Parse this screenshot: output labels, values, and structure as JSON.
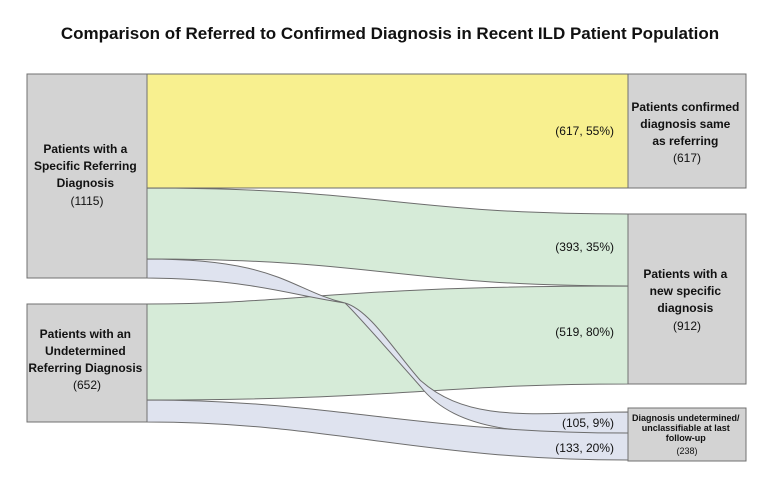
{
  "title": "Comparison of Referred to Confirmed Diagnosis in Recent ILD Patient Population",
  "colors": {
    "node_fill": "#d3d3d3",
    "node_stroke": "#707070",
    "flow_same": "#f8f08f",
    "flow_new": "#d6ebd8",
    "flow_undetermined": "#dfe3ef",
    "flow_stroke": "#6d6d6d"
  },
  "nodes": {
    "specific_referring": {
      "lines": [
        "Patients with a",
        "Specific Referring",
        "Diagnosis"
      ],
      "count": "(1115)"
    },
    "undetermined_referring": {
      "lines": [
        "Patients with an",
        "Undetermined",
        "Referring Diagnosis"
      ],
      "count": "(652)"
    },
    "confirmed_same": {
      "lines": [
        "Patients confirmed",
        "diagnosis same",
        "as referring"
      ],
      "count": "(617)"
    },
    "new_specific": {
      "lines": [
        "Patients with a",
        "new specific",
        "diagnosis"
      ],
      "count": "(912)"
    },
    "undetermined_final": {
      "lines": [
        "Diagnosis undetermined/",
        "unclassifiable at last",
        "follow-up"
      ],
      "count": "(238)"
    }
  },
  "flows": [
    {
      "from": "specific_referring",
      "to": "confirmed_same",
      "label": "(617, 55%)",
      "value": 617
    },
    {
      "from": "specific_referring",
      "to": "new_specific",
      "label": "(393, 35%)",
      "value": 393
    },
    {
      "from": "specific_referring",
      "to": "undetermined_final",
      "label": "(105, 9%)",
      "value": 105
    },
    {
      "from": "undetermined_referring",
      "to": "new_specific",
      "label": "(519, 80%)",
      "value": 519
    },
    {
      "from": "undetermined_referring",
      "to": "undetermined_final",
      "label": "(133, 20%)",
      "value": 133
    }
  ]
}
